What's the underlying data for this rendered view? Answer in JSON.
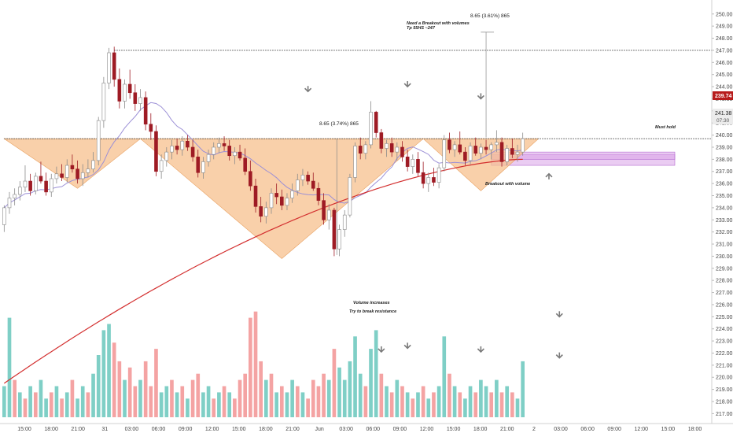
{
  "chart_data": {
    "type": "candlestick",
    "colors": {
      "up": "#26a69a",
      "up_fill": "#ffffff",
      "down": "#9e1b24",
      "vol_up": "#7fcfc6",
      "vol_down": "#f4a3a3",
      "ma_fast": "#9b8fd6",
      "ma_slow": "#d32f2f",
      "pattern": "#f7c08e",
      "zone": "#d9a3e8",
      "price_badge": "#b71c1c",
      "level_badge": "#ececec",
      "arrow": "#7a7a7a"
    },
    "y_axis": {
      "min": 216.7,
      "max": 250.7,
      "ticks": [
        "217.00",
        "218.00",
        "219.00",
        "220.00",
        "221.00",
        "222.00",
        "223.00",
        "224.00",
        "225.00",
        "226.00",
        "227.00",
        "228.00",
        "229.00",
        "230.00",
        "231.00",
        "232.00",
        "233.00",
        "234.00",
        "235.00",
        "236.00",
        "237.00",
        "238.00",
        "239.00",
        "240.00",
        "241.00",
        "242.00",
        "243.00",
        "244.00",
        "245.00",
        "246.00",
        "247.00",
        "248.00",
        "249.00",
        "250.00"
      ]
    },
    "x_axis": {
      "ticks": [
        "15:00",
        "18:00",
        "21:00",
        "31",
        "03:00",
        "06:00",
        "09:00",
        "12:00",
        "15:00",
        "18:00",
        "21:00",
        "Jun",
        "03:00",
        "06:00",
        "09:00",
        "12:00",
        "15:00",
        "18:00",
        "21:00",
        "2",
        "03:00",
        "06:00",
        "09:00",
        "12:00",
        "15:00",
        "18:00"
      ]
    },
    "price_labels": {
      "current": "239.74",
      "level_1": "241.38",
      "timer": "07:30"
    },
    "annotations": {
      "breakout_note_1": "Need a Breakout with volumes",
      "breakout_note_2": "Tp 55HS ~247",
      "measure_top": "8.65 (3.61%) 865",
      "measure_mid": "8.65 (3.74%) 865",
      "must_hold": "Must hold",
      "breakout_volume": "Breakout with volume",
      "volume_1": "Volume increases",
      "volume_2": "Try to break resistance"
    },
    "levels": {
      "top_line": 247.0,
      "neckline": 239.7
    },
    "zones": [
      {
        "low": 237.5,
        "high": 238.4
      },
      {
        "low": 238.0,
        "high": 238.6
      }
    ],
    "patterns": [
      {
        "points": [
          [
            0,
            239.7
          ],
          [
            14,
            235.6
          ],
          [
            26,
            239.7
          ]
        ]
      },
      {
        "points": [
          [
            26,
            239.7
          ],
          [
            53,
            229.8
          ],
          [
            80,
            239.7
          ]
        ]
      },
      {
        "points": [
          [
            80,
            239.7
          ],
          [
            91,
            235.4
          ],
          [
            102,
            239.7
          ]
        ]
      }
    ],
    "arrows_down": [
      [
        58,
        243.6
      ],
      [
        77,
        244.0
      ],
      [
        91,
        243.0
      ],
      [
        106,
        225.0
      ]
    ],
    "arrows_vol": [
      [
        72,
        222.1
      ],
      [
        77,
        222.4
      ],
      [
        91,
        222.1
      ],
      [
        106,
        221.6
      ]
    ],
    "arrow_up": [
      104,
      236.8
    ],
    "candles": [
      [
        232.6,
        234.2,
        232.0,
        234.0
      ],
      [
        234.0,
        235.3,
        233.5,
        234.8
      ],
      [
        234.8,
        235.6,
        234.2,
        235.1
      ],
      [
        235.1,
        236.2,
        234.6,
        235.7
      ],
      [
        235.7,
        237.5,
        235.3,
        236.2
      ],
      [
        236.2,
        236.8,
        235.0,
        235.4
      ],
      [
        235.4,
        236.9,
        235.1,
        236.6
      ],
      [
        236.6,
        237.8,
        236.0,
        236.2
      ],
      [
        236.2,
        236.9,
        235.0,
        235.3
      ],
      [
        235.3,
        236.8,
        234.9,
        236.4
      ],
      [
        236.4,
        237.4,
        236.0,
        236.8
      ],
      [
        236.8,
        237.6,
        236.2,
        236.5
      ],
      [
        236.5,
        238.0,
        236.1,
        237.5
      ],
      [
        237.5,
        238.4,
        236.9,
        237.2
      ],
      [
        237.2,
        237.9,
        236.0,
        236.4
      ],
      [
        236.4,
        237.6,
        235.8,
        236.9
      ],
      [
        236.9,
        238.0,
        236.5,
        237.2
      ],
      [
        237.2,
        238.6,
        236.9,
        237.9
      ],
      [
        237.9,
        241.5,
        237.5,
        241.2
      ],
      [
        241.2,
        244.8,
        240.6,
        244.3
      ],
      [
        244.3,
        247.2,
        243.8,
        246.8
      ],
      [
        246.8,
        247.3,
        244.0,
        244.6
      ],
      [
        244.6,
        245.5,
        242.2,
        242.8
      ],
      [
        242.8,
        244.6,
        242.2,
        244.2
      ],
      [
        244.2,
        245.4,
        243.0,
        243.5
      ],
      [
        243.5,
        244.2,
        242.0,
        242.6
      ],
      [
        242.6,
        243.8,
        242.0,
        243.1
      ],
      [
        243.1,
        243.6,
        240.4,
        240.9
      ],
      [
        240.9,
        241.8,
        239.6,
        240.3
      ],
      [
        240.3,
        240.8,
        236.6,
        237.0
      ],
      [
        237.0,
        238.4,
        236.4,
        237.9
      ],
      [
        237.9,
        239.0,
        237.4,
        238.6
      ],
      [
        238.6,
        239.6,
        238.0,
        239.1
      ],
      [
        239.1,
        239.7,
        238.4,
        238.8
      ],
      [
        238.8,
        239.9,
        238.3,
        239.5
      ],
      [
        239.5,
        240.0,
        238.7,
        239.0
      ],
      [
        239.0,
        239.6,
        237.8,
        238.2
      ],
      [
        238.2,
        238.8,
        236.5,
        236.9
      ],
      [
        236.9,
        238.2,
        236.4,
        237.8
      ],
      [
        237.8,
        238.8,
        237.4,
        238.4
      ],
      [
        238.4,
        239.4,
        238.0,
        239.0
      ],
      [
        239.0,
        239.8,
        238.5,
        239.3
      ],
      [
        239.3,
        239.9,
        238.7,
        239.1
      ],
      [
        239.1,
        239.6,
        237.9,
        238.3
      ],
      [
        238.3,
        239.0,
        237.6,
        238.6
      ],
      [
        238.6,
        239.2,
        237.9,
        238.1
      ],
      [
        238.1,
        238.9,
        236.7,
        237.0
      ],
      [
        237.0,
        237.9,
        235.4,
        235.8
      ],
      [
        235.8,
        236.4,
        233.6,
        234.1
      ],
      [
        234.1,
        234.9,
        232.8,
        233.3
      ],
      [
        233.3,
        234.5,
        232.7,
        234.0
      ],
      [
        234.0,
        235.6,
        233.5,
        235.2
      ],
      [
        235.2,
        236.0,
        234.3,
        234.9
      ],
      [
        234.9,
        235.5,
        233.8,
        234.2
      ],
      [
        234.2,
        235.2,
        233.8,
        234.8
      ],
      [
        234.8,
        236.0,
        234.4,
        235.4
      ],
      [
        235.4,
        236.8,
        235.0,
        236.3
      ],
      [
        236.3,
        237.2,
        235.8,
        236.7
      ],
      [
        236.7,
        237.0,
        235.9,
        236.2
      ],
      [
        236.2,
        236.9,
        235.4,
        235.6
      ],
      [
        235.6,
        236.1,
        234.2,
        234.6
      ],
      [
        234.6,
        235.2,
        232.6,
        233.0
      ],
      [
        233.0,
        234.3,
        232.2,
        233.8
      ],
      [
        233.8,
        234.0,
        230.0,
        230.6
      ],
      [
        230.6,
        232.6,
        230.0,
        232.2
      ],
      [
        232.2,
        233.8,
        231.6,
        233.4
      ],
      [
        233.4,
        236.8,
        233.2,
        236.5
      ],
      [
        236.5,
        239.4,
        236.1,
        239.1
      ],
      [
        239.1,
        239.8,
        238.0,
        238.5
      ],
      [
        238.5,
        239.5,
        238.0,
        239.2
      ],
      [
        239.2,
        242.8,
        238.9,
        241.9
      ],
      [
        241.9,
        242.0,
        239.8,
        240.2
      ],
      [
        240.2,
        240.5,
        238.5,
        238.9
      ],
      [
        238.9,
        239.6,
        238.2,
        239.3
      ],
      [
        239.3,
        239.8,
        238.2,
        238.6
      ],
      [
        238.6,
        239.4,
        237.9,
        239.0
      ],
      [
        239.0,
        239.5,
        237.8,
        238.2
      ],
      [
        238.2,
        238.8,
        237.0,
        237.4
      ],
      [
        237.4,
        238.4,
        236.8,
        238.0
      ],
      [
        238.0,
        238.6,
        236.6,
        236.9
      ],
      [
        236.9,
        237.8,
        235.6,
        236.0
      ],
      [
        236.0,
        236.9,
        235.3,
        236.5
      ],
      [
        236.5,
        237.3,
        235.8,
        236.1
      ],
      [
        236.1,
        237.6,
        235.6,
        237.3
      ],
      [
        237.3,
        240.0,
        237.0,
        239.6
      ],
      [
        239.6,
        240.2,
        238.5,
        238.8
      ],
      [
        238.8,
        239.5,
        238.2,
        239.2
      ],
      [
        239.2,
        240.3,
        238.4,
        238.6
      ],
      [
        238.6,
        239.0,
        237.5,
        237.9
      ],
      [
        237.9,
        239.4,
        237.6,
        239.1
      ],
      [
        239.1,
        239.8,
        238.3,
        238.5
      ],
      [
        238.5,
        239.3,
        238.0,
        239.0
      ],
      [
        239.0,
        239.6,
        238.4,
        238.8
      ],
      [
        238.8,
        239.4,
        238.0,
        239.2
      ],
      [
        239.2,
        240.4,
        238.6,
        239.4
      ],
      [
        239.4,
        239.8,
        237.4,
        237.8
      ],
      [
        237.8,
        239.2,
        237.5,
        238.9
      ],
      [
        238.9,
        239.7,
        238.1,
        238.4
      ],
      [
        238.4,
        239.2,
        237.8,
        238.6
      ],
      [
        238.6,
        240.2,
        238.3,
        239.7
      ]
    ],
    "volume": [
      [
        5,
        "up"
      ],
      [
        16,
        "up"
      ],
      [
        6,
        "down"
      ],
      [
        4,
        "up"
      ],
      [
        3,
        "down"
      ],
      [
        5,
        "up"
      ],
      [
        4,
        "down"
      ],
      [
        6,
        "up"
      ],
      [
        3,
        "up"
      ],
      [
        4,
        "down"
      ],
      [
        5,
        "up"
      ],
      [
        3,
        "down"
      ],
      [
        4,
        "up"
      ],
      [
        6,
        "down"
      ],
      [
        3,
        "up"
      ],
      [
        5,
        "up"
      ],
      [
        4,
        "down"
      ],
      [
        7,
        "up"
      ],
      [
        10,
        "up"
      ],
      [
        14,
        "up"
      ],
      [
        15,
        "up"
      ],
      [
        12,
        "down"
      ],
      [
        9,
        "down"
      ],
      [
        6,
        "up"
      ],
      [
        8,
        "down"
      ],
      [
        5,
        "down"
      ],
      [
        6,
        "up"
      ],
      [
        9,
        "down"
      ],
      [
        5,
        "down"
      ],
      [
        11,
        "down"
      ],
      [
        4,
        "up"
      ],
      [
        5,
        "up"
      ],
      [
        6,
        "down"
      ],
      [
        4,
        "up"
      ],
      [
        5,
        "down"
      ],
      [
        3,
        "up"
      ],
      [
        6,
        "down"
      ],
      [
        7,
        "down"
      ],
      [
        4,
        "up"
      ],
      [
        5,
        "up"
      ],
      [
        3,
        "down"
      ],
      [
        4,
        "up"
      ],
      [
        5,
        "down"
      ],
      [
        4,
        "up"
      ],
      [
        3,
        "down"
      ],
      [
        6,
        "down"
      ],
      [
        7,
        "down"
      ],
      [
        16,
        "down"
      ],
      [
        17,
        "down"
      ],
      [
        9,
        "down"
      ],
      [
        6,
        "up"
      ],
      [
        7,
        "down"
      ],
      [
        4,
        "up"
      ],
      [
        5,
        "down"
      ],
      [
        4,
        "up"
      ],
      [
        6,
        "up"
      ],
      [
        5,
        "down"
      ],
      [
        4,
        "up"
      ],
      [
        3,
        "down"
      ],
      [
        6,
        "down"
      ],
      [
        5,
        "down"
      ],
      [
        7,
        "down"
      ],
      [
        6,
        "up"
      ],
      [
        11,
        "down"
      ],
      [
        8,
        "up"
      ],
      [
        6,
        "up"
      ],
      [
        9,
        "up"
      ],
      [
        13,
        "up"
      ],
      [
        7,
        "up"
      ],
      [
        5,
        "down"
      ],
      [
        11,
        "up"
      ],
      [
        14,
        "up"
      ],
      [
        7,
        "down"
      ],
      [
        5,
        "up"
      ],
      [
        4,
        "down"
      ],
      [
        6,
        "up"
      ],
      [
        5,
        "down"
      ],
      [
        4,
        "up"
      ],
      [
        3,
        "down"
      ],
      [
        4,
        "up"
      ],
      [
        5,
        "down"
      ],
      [
        3,
        "up"
      ],
      [
        4,
        "down"
      ],
      [
        5,
        "up"
      ],
      [
        13,
        "up"
      ],
      [
        7,
        "down"
      ],
      [
        5,
        "up"
      ],
      [
        4,
        "down"
      ],
      [
        3,
        "up"
      ],
      [
        5,
        "up"
      ],
      [
        4,
        "down"
      ],
      [
        6,
        "up"
      ],
      [
        5,
        "up"
      ],
      [
        4,
        "down"
      ],
      [
        6,
        "up"
      ],
      [
        4,
        "down"
      ],
      [
        5,
        "up"
      ],
      [
        4,
        "down"
      ],
      [
        3,
        "up"
      ],
      [
        9,
        "up"
      ]
    ]
  }
}
